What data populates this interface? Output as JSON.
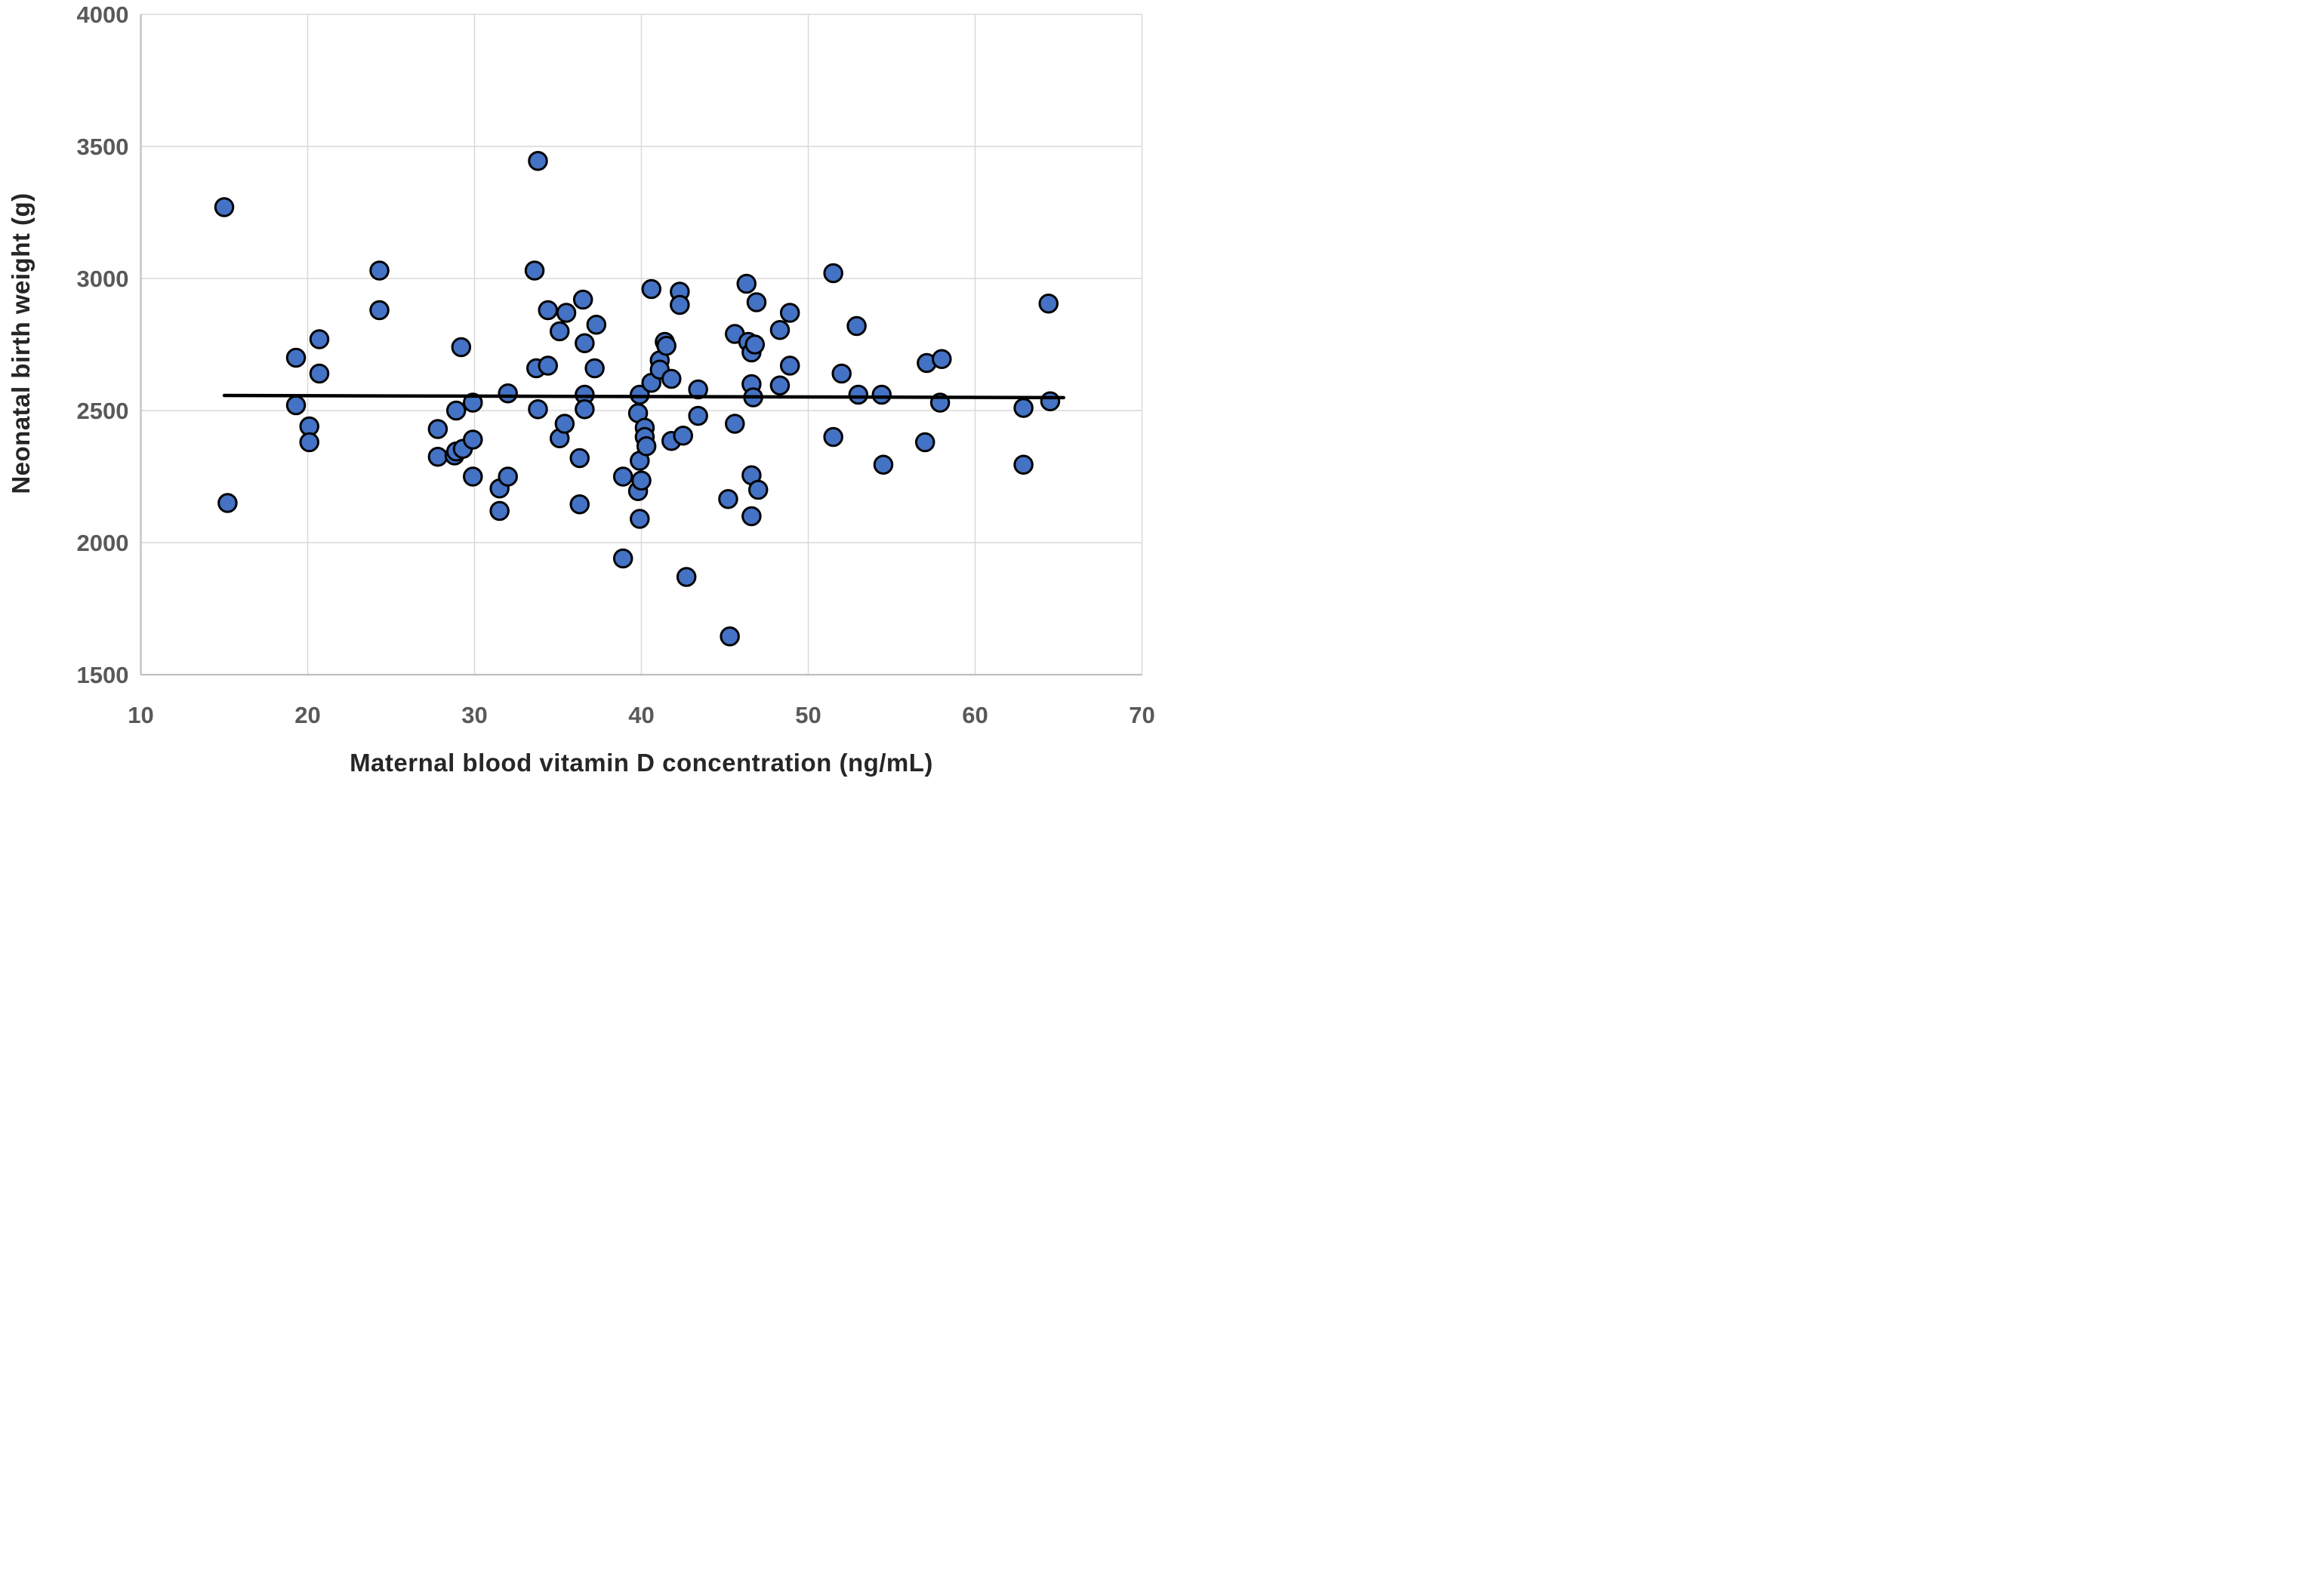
{
  "chart_data": {
    "type": "scatter",
    "title": "",
    "xlabel": "Maternal blood vitamin D concentration (ng/mL)",
    "ylabel": "Neonatal birth weight (g)",
    "xlim": [
      10,
      70
    ],
    "ylim": [
      1500,
      4000
    ],
    "x_ticks": [
      10,
      20,
      30,
      40,
      50,
      60,
      70
    ],
    "y_ticks": [
      1500,
      2000,
      2500,
      3000,
      3500,
      4000
    ],
    "grid": true,
    "legend": "none",
    "marker": "circle",
    "points": [
      [
        15.0,
        3270
      ],
      [
        15.2,
        2150
      ],
      [
        19.3,
        2700
      ],
      [
        19.3,
        2520
      ],
      [
        20.1,
        2440
      ],
      [
        20.1,
        2380
      ],
      [
        20.7,
        2770
      ],
      [
        20.7,
        2640
      ],
      [
        24.3,
        3030
      ],
      [
        24.3,
        2880
      ],
      [
        27.8,
        2430
      ],
      [
        27.8,
        2325
      ],
      [
        28.8,
        2330
      ],
      [
        28.9,
        2345
      ],
      [
        29.3,
        2355
      ],
      [
        28.9,
        2500
      ],
      [
        29.2,
        2740
      ],
      [
        29.9,
        2530
      ],
      [
        29.9,
        2390
      ],
      [
        29.9,
        2250
      ],
      [
        31.5,
        2205
      ],
      [
        31.5,
        2120
      ],
      [
        32.0,
        2250
      ],
      [
        32.0,
        2565
      ],
      [
        33.6,
        3030
      ],
      [
        33.7,
        2660
      ],
      [
        33.8,
        3445
      ],
      [
        33.8,
        2505
      ],
      [
        34.4,
        2880
      ],
      [
        34.4,
        2670
      ],
      [
        35.1,
        2800
      ],
      [
        35.1,
        2395
      ],
      [
        35.4,
        2450
      ],
      [
        35.5,
        2870
      ],
      [
        36.3,
        2320
      ],
      [
        36.3,
        2145
      ],
      [
        36.5,
        2920
      ],
      [
        36.6,
        2755
      ],
      [
        36.6,
        2560
      ],
      [
        36.6,
        2505
      ],
      [
        37.2,
        2660
      ],
      [
        37.3,
        2825
      ],
      [
        38.9,
        2250
      ],
      [
        38.9,
        1940
      ],
      [
        39.8,
        2490
      ],
      [
        39.8,
        2195
      ],
      [
        39.9,
        2560
      ],
      [
        39.9,
        2310
      ],
      [
        39.9,
        2090
      ],
      [
        40.0,
        2235
      ],
      [
        40.2,
        2435
      ],
      [
        40.2,
        2400
      ],
      [
        40.3,
        2365
      ],
      [
        40.6,
        2960
      ],
      [
        40.6,
        2605
      ],
      [
        41.1,
        2690
      ],
      [
        41.1,
        2655
      ],
      [
        41.4,
        2760
      ],
      [
        41.5,
        2745
      ],
      [
        41.8,
        2620
      ],
      [
        41.8,
        2385
      ],
      [
        42.3,
        2950
      ],
      [
        42.3,
        2900
      ],
      [
        42.5,
        2405
      ],
      [
        42.7,
        1870
      ],
      [
        43.4,
        2580
      ],
      [
        43.4,
        2480
      ],
      [
        45.2,
        2165
      ],
      [
        45.3,
        1645
      ],
      [
        45.6,
        2790
      ],
      [
        45.6,
        2450
      ],
      [
        46.3,
        2980
      ],
      [
        46.4,
        2760
      ],
      [
        46.6,
        2720
      ],
      [
        46.6,
        2600
      ],
      [
        46.6,
        2255
      ],
      [
        46.6,
        2100
      ],
      [
        46.7,
        2550
      ],
      [
        46.8,
        2750
      ],
      [
        46.9,
        2910
      ],
      [
        47.0,
        2200
      ],
      [
        48.3,
        2805
      ],
      [
        48.3,
        2595
      ],
      [
        48.9,
        2870
      ],
      [
        48.9,
        2670
      ],
      [
        51.5,
        3020
      ],
      [
        51.5,
        2400
      ],
      [
        52.0,
        2640
      ],
      [
        52.9,
        2820
      ],
      [
        53.0,
        2560
      ],
      [
        54.4,
        2560
      ],
      [
        54.5,
        2295
      ],
      [
        57.0,
        2380
      ],
      [
        57.1,
        2680
      ],
      [
        57.9,
        2530
      ],
      [
        58.0,
        2695
      ],
      [
        62.9,
        2510
      ],
      [
        62.9,
        2295
      ],
      [
        64.4,
        2905
      ],
      [
        64.5,
        2535
      ]
    ],
    "trendline": {
      "x1": 15.0,
      "y1": 2557,
      "x2": 65.3,
      "y2": 2549
    },
    "colors": {
      "point_fill": "#4472C4",
      "point_stroke": "#000000",
      "trend_line": "#000000",
      "gridline": "#D9D9D9",
      "axis_line": "#BFBFBF",
      "tick_label": "#595959",
      "axis_title": "#262626",
      "background": "#FFFFFF"
    }
  }
}
